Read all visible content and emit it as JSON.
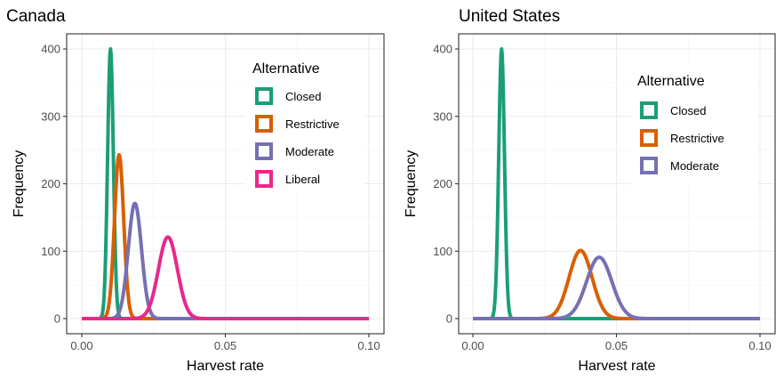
{
  "chart_data": [
    {
      "type": "line",
      "title": "Canada",
      "xlabel": "Harvest rate",
      "ylabel": "Frequency",
      "xlim": [
        0.0,
        0.1
      ],
      "ylim": [
        0,
        400
      ],
      "xticks": [
        "0.00",
        "0.05",
        "0.10"
      ],
      "yticks": [
        "0",
        "100",
        "200",
        "300",
        "400"
      ],
      "grid": true,
      "legend": {
        "title": "Alternative",
        "position": "top-right"
      },
      "series": [
        {
          "name": "Closed",
          "color": "#1b9e77",
          "peak_x": 0.01,
          "peak_y": 400,
          "sd": 0.001
        },
        {
          "name": "Restrictive",
          "color": "#d95f02",
          "peak_x": 0.013,
          "peak_y": 243,
          "sd": 0.0016
        },
        {
          "name": "Moderate",
          "color": "#7570b3",
          "peak_x": 0.0185,
          "peak_y": 171,
          "sd": 0.0023
        },
        {
          "name": "Liberal",
          "color": "#e7298a",
          "peak_x": 0.03,
          "peak_y": 121,
          "sd": 0.0033
        }
      ]
    },
    {
      "type": "line",
      "title": "United States",
      "xlabel": "Harvest rate",
      "ylabel": "Frequency",
      "xlim": [
        0.0,
        0.1
      ],
      "ylim": [
        0,
        400
      ],
      "xticks": [
        "0.00",
        "0.05",
        "0.10"
      ],
      "yticks": [
        "0",
        "100",
        "200",
        "300",
        "400"
      ],
      "grid": true,
      "legend": {
        "title": "Alternative",
        "position": "top-right"
      },
      "series": [
        {
          "name": "Closed",
          "color": "#1b9e77",
          "peak_x": 0.01,
          "peak_y": 400,
          "sd": 0.001
        },
        {
          "name": "Restrictive",
          "color": "#d95f02",
          "peak_x": 0.0375,
          "peak_y": 101,
          "sd": 0.004
        },
        {
          "name": "Moderate",
          "color": "#7570b3",
          "peak_x": 0.044,
          "peak_y": 91,
          "sd": 0.0044
        }
      ]
    }
  ]
}
